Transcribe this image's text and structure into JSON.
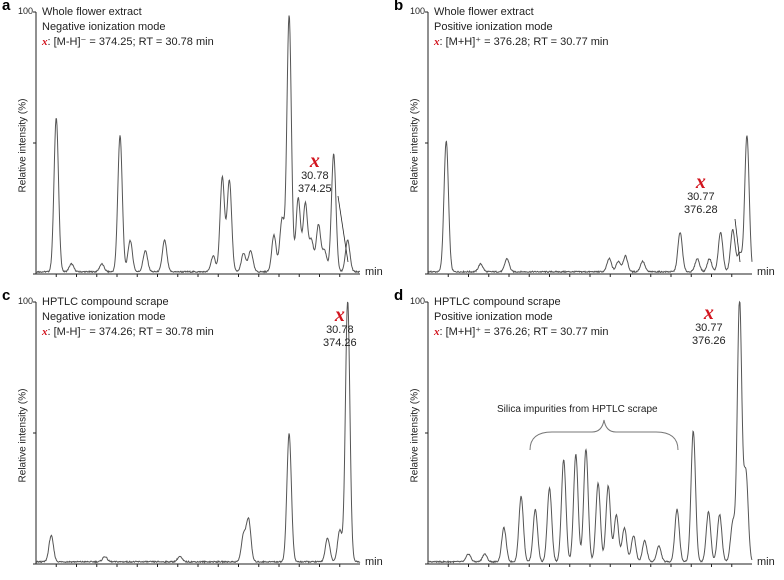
{
  "colors": {
    "trace": "#555555",
    "axis": "#222222",
    "accent": "#d2141e"
  },
  "common": {
    "ylabel": "Relative intensity (%)",
    "ymax_label": "100",
    "xunit": "min",
    "marker": "x"
  },
  "panels": [
    {
      "label": "a",
      "title": "Whole flower extract",
      "mode": "Negative ionization mode",
      "ion": ": [M-H]⁻ = 374.25;  RT = 30.78 min",
      "annotation": {
        "rt": "30.78",
        "mz": "374.25"
      }
    },
    {
      "label": "b",
      "title": "Whole flower extract",
      "mode": "Positive ionization mode",
      "ion": ": [M+H]⁺ = 376.28; RT = 30.77 min",
      "annotation": {
        "rt": "30.77",
        "mz": "376.28"
      }
    },
    {
      "label": "c",
      "title": "HPTLC compound scrape",
      "mode": "Negative ionization mode",
      "ion": ": [M-H]⁻ = 374.26;  RT = 30.78 min",
      "annotation": {
        "rt": "30.78",
        "mz": "374.26"
      }
    },
    {
      "label": "d",
      "title": "HPTLC compound scrape",
      "mode": "Positive ionization mode",
      "ion": ": [M+H]⁺ = 376.26; RT = 30.77 min",
      "annotation": {
        "rt": "30.77",
        "mz": "376.26"
      },
      "bracket_label": "Silica impurities from HPTLC scrape"
    }
  ],
  "chart_data": [
    {
      "type": "line",
      "panel": "a",
      "xlabel": "min",
      "ylabel": "Relative intensity (%)",
      "xlim": [
        0,
        32
      ],
      "ylim": [
        0,
        100
      ],
      "peaks": [
        [
          2.0,
          59
        ],
        [
          3.5,
          3
        ],
        [
          6.5,
          3
        ],
        [
          8.3,
          52
        ],
        [
          9.3,
          12
        ],
        [
          10.8,
          8
        ],
        [
          12.7,
          12
        ],
        [
          17.5,
          6
        ],
        [
          18.4,
          36
        ],
        [
          19.1,
          35
        ],
        [
          20.5,
          7
        ],
        [
          21.2,
          8
        ],
        [
          23.5,
          14
        ],
        [
          24.3,
          20
        ],
        [
          25.0,
          98
        ],
        [
          25.9,
          28
        ],
        [
          26.6,
          26
        ],
        [
          27.2,
          12
        ],
        [
          27.9,
          18
        ],
        [
          28.5,
          8
        ],
        [
          29.4,
          45
        ],
        [
          30.78,
          12
        ]
      ]
    },
    {
      "type": "line",
      "panel": "b",
      "xlabel": "min",
      "ylabel": "Relative intensity (%)",
      "xlim": [
        0,
        32
      ],
      "ylim": [
        0,
        100
      ],
      "peaks": [
        [
          1.8,
          50
        ],
        [
          5.2,
          3
        ],
        [
          7.8,
          5
        ],
        [
          17.9,
          5
        ],
        [
          18.8,
          4
        ],
        [
          19.5,
          6
        ],
        [
          21.2,
          4
        ],
        [
          24.9,
          15
        ],
        [
          26.6,
          5
        ],
        [
          27.8,
          5
        ],
        [
          28.9,
          15
        ],
        [
          30.1,
          16
        ],
        [
          30.77,
          7
        ],
        [
          31.5,
          52
        ]
      ]
    },
    {
      "type": "line",
      "panel": "c",
      "xlabel": "min",
      "ylabel": "Relative intensity (%)",
      "xlim": [
        0,
        32
      ],
      "ylim": [
        0,
        100
      ],
      "peaks": [
        [
          1.5,
          10
        ],
        [
          6.8,
          2
        ],
        [
          14.2,
          2
        ],
        [
          20.5,
          10
        ],
        [
          21.0,
          16
        ],
        [
          25.0,
          49
        ],
        [
          28.8,
          9
        ],
        [
          30.0,
          12
        ],
        [
          30.78,
          100
        ]
      ]
    },
    {
      "type": "line",
      "panel": "d",
      "xlabel": "min",
      "ylabel": "Relative intensity (%)",
      "xlim": [
        0,
        32
      ],
      "ylim": [
        0,
        100
      ],
      "peaks": [
        [
          4.0,
          3
        ],
        [
          5.6,
          3
        ],
        [
          7.5,
          13
        ],
        [
          9.2,
          25
        ],
        [
          10.6,
          20
        ],
        [
          12.0,
          28
        ],
        [
          13.4,
          39
        ],
        [
          14.6,
          41
        ],
        [
          15.6,
          43
        ],
        [
          16.8,
          30
        ],
        [
          17.8,
          29
        ],
        [
          18.6,
          18
        ],
        [
          19.4,
          13
        ],
        [
          20.3,
          10
        ],
        [
          21.4,
          8
        ],
        [
          22.8,
          6
        ],
        [
          24.6,
          20
        ],
        [
          26.2,
          50
        ],
        [
          27.7,
          19
        ],
        [
          28.8,
          18
        ],
        [
          30.1,
          15
        ],
        [
          30.77,
          100
        ],
        [
          31.4,
          34
        ]
      ]
    }
  ]
}
